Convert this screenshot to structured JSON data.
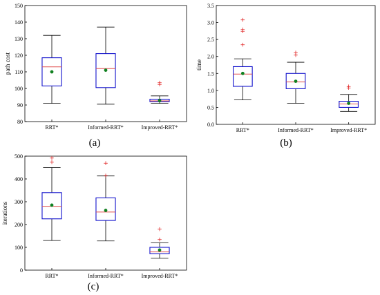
{
  "panel_labels": [
    "(a)",
    "(b)",
    "(c)"
  ],
  "colors": {
    "box": "#1010cc",
    "median": "#e05050",
    "whisker": "#000000",
    "mean": "#108020",
    "outlier": "#e02020",
    "axis": "#000000"
  },
  "chart_data": [
    {
      "type": "box",
      "title": "",
      "xlabel": "",
      "ylabel": "path cost",
      "ylim": [
        80,
        150
      ],
      "yticks": [
        80,
        90,
        100,
        110,
        120,
        130,
        140,
        150
      ],
      "grid": false,
      "categories": [
        "RRT*",
        "Informed-RRT*",
        "Improved-RRT*"
      ],
      "boxes": [
        {
          "whisker_low": 91,
          "q1": 101.5,
          "median": 113,
          "q3": 118.5,
          "whisker_high": 132,
          "mean": 110,
          "outliers": []
        },
        {
          "whisker_low": 90.5,
          "q1": 100.5,
          "median": 112,
          "q3": 121,
          "whisker_high": 137,
          "mean": 111,
          "outliers": []
        },
        {
          "whisker_low": 91,
          "q1": 92,
          "median": 92.5,
          "q3": 93.5,
          "whisker_high": 95.5,
          "mean": 92.7,
          "outliers": [
            102.5,
            103.5
          ]
        }
      ]
    },
    {
      "type": "box",
      "title": "",
      "xlabel": "",
      "ylabel": "time",
      "ylim": [
        0,
        3.5
      ],
      "yticks": [
        0,
        0.5,
        1.0,
        1.5,
        2.0,
        2.5,
        3.0,
        3.5
      ],
      "grid": false,
      "categories": [
        "RRT*",
        "Informed-RRT*",
        "Improved-RRT*"
      ],
      "boxes": [
        {
          "whisker_low": 0.72,
          "q1": 1.12,
          "median": 1.48,
          "q3": 1.7,
          "whisker_high": 1.93,
          "mean": 1.5,
          "outliers": [
            2.35,
            2.75,
            2.8,
            3.08
          ]
        },
        {
          "whisker_low": 0.62,
          "q1": 1.05,
          "median": 1.25,
          "q3": 1.5,
          "whisker_high": 1.83,
          "mean": 1.27,
          "outliers": [
            2.05,
            2.12
          ]
        },
        {
          "whisker_low": 0.38,
          "q1": 0.5,
          "median": 0.6,
          "q3": 0.68,
          "whisker_high": 0.88,
          "mean": 0.62,
          "outliers": [
            1.08,
            1.12
          ]
        }
      ]
    },
    {
      "type": "box",
      "title": "",
      "xlabel": "",
      "ylabel": "iterations",
      "ylim": [
        0,
        500
      ],
      "yticks": [
        0,
        100,
        200,
        300,
        400,
        500
      ],
      "grid": false,
      "categories": [
        "RRT*",
        "Informed-RRT*",
        "Improved-RRT*"
      ],
      "boxes": [
        {
          "whisker_low": 130,
          "q1": 225,
          "median": 280,
          "q3": 340,
          "whisker_high": 450,
          "mean": 285,
          "outliers": [
            475,
            492
          ]
        },
        {
          "whisker_low": 128,
          "q1": 218,
          "median": 255,
          "q3": 317,
          "whisker_high": 413,
          "mean": 262,
          "outliers": [
            415,
            470
          ]
        },
        {
          "whisker_low": 52,
          "q1": 72,
          "median": 80,
          "q3": 100,
          "whisker_high": 120,
          "mean": 88,
          "outliers": [
            135,
            180
          ]
        }
      ]
    }
  ]
}
